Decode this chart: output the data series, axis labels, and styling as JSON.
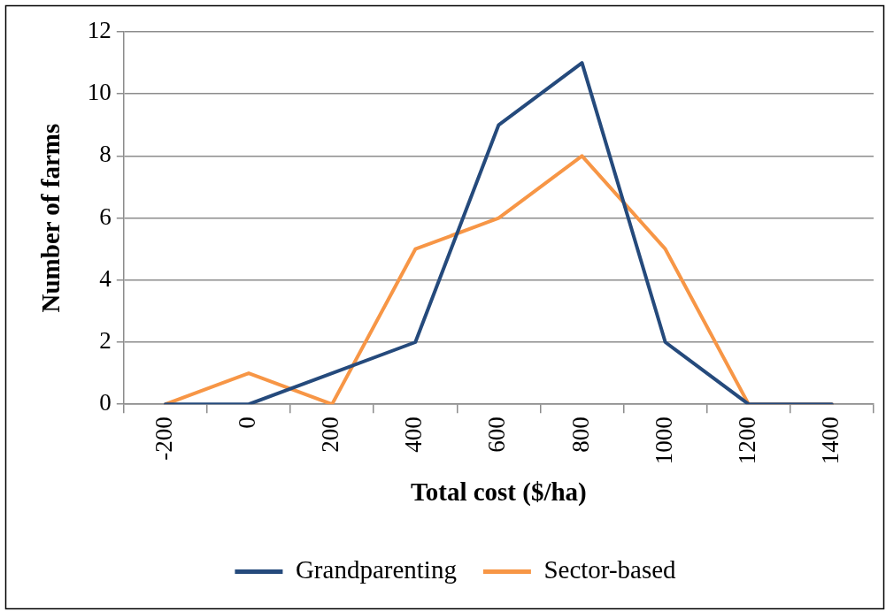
{
  "chart_data": {
    "type": "line",
    "xlabel": "Total cost ($/ha)",
    "ylabel": "Number of farms",
    "categories": [
      "-200",
      "0",
      "200",
      "400",
      "600",
      "800",
      "1000",
      "1200",
      "1400"
    ],
    "series": [
      {
        "name": "Grandparenting",
        "color": "#254a7c",
        "values": [
          0,
          0,
          1,
          2,
          9,
          11,
          2,
          0,
          0
        ]
      },
      {
        "name": "Sector-based",
        "color": "#f79646",
        "values": [
          0,
          1,
          0,
          5,
          6,
          8,
          5,
          0,
          0
        ]
      }
    ],
    "ylim": [
      0,
      12
    ],
    "yticks": [
      0,
      2,
      4,
      6,
      8,
      10,
      12
    ],
    "grid": "y",
    "legend": "bottom",
    "marker": "none",
    "line_style": "solid"
  }
}
